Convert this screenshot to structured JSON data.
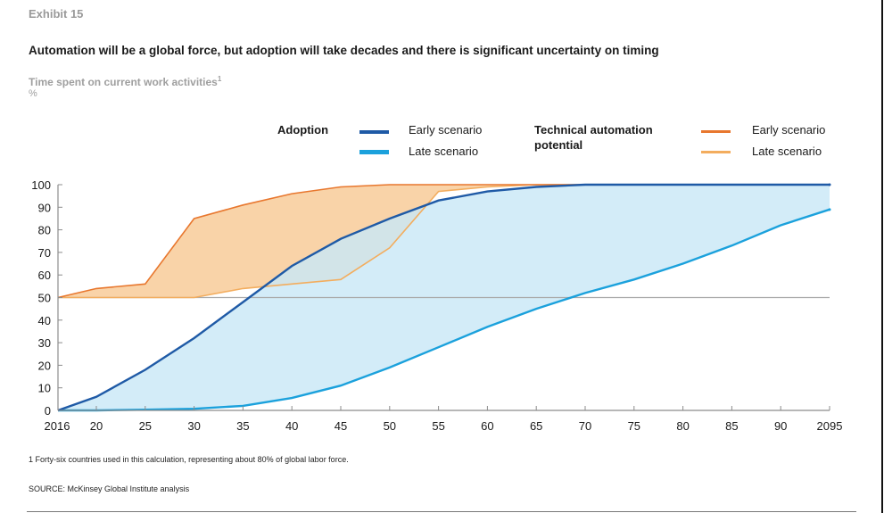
{
  "header": {
    "exhibit": "Exhibit 15",
    "title": "Automation will be a global force, but adoption will take decades and there is significant uncertainty on timing",
    "subtitle": "Time spent on current work activities",
    "subtitle_footnote_mark": "1",
    "unit": "%"
  },
  "legend": {
    "adoption_title": "Adoption",
    "adoption_early": "Early scenario",
    "adoption_late": "Late scenario",
    "technical_title_line1": "Technical automation",
    "technical_title_line2": "potential",
    "technical_early": "Early scenario",
    "technical_late": "Late scenario"
  },
  "colors": {
    "adoption_early": "#1f5aa6",
    "adoption_late": "#1ba1dc",
    "adoption_fill": "#c9e8f7",
    "technical_early": "#e8772e",
    "technical_late": "#f3ad5e",
    "technical_fill": "#f9d3a8",
    "overlap_fill": "#e3c9a3",
    "axis": "#8c8c8c",
    "reference_line": "#a9a9a9"
  },
  "footnote": "1  Forty-six countries used in this calculation, representing about 80% of global labor force.",
  "source": "SOURCE: McKinsey Global Institute analysis",
  "chart_data": {
    "type": "area",
    "title": "Automation will be a global force, but adoption will take decades and there is significant uncertainty on timing",
    "subtitle": "Time spent on current work activities",
    "xlabel": "",
    "ylabel": "%",
    "ylim": [
      0,
      100
    ],
    "xlim": [
      2016,
      2095
    ],
    "grid": false,
    "reference_line_y": 50,
    "legend_position": "top-right",
    "y_ticks": [
      0,
      10,
      20,
      30,
      40,
      50,
      60,
      70,
      80,
      90,
      100
    ],
    "x_tick_values": [
      2016,
      2020,
      2025,
      2030,
      2035,
      2040,
      2045,
      2050,
      2055,
      2060,
      2065,
      2070,
      2075,
      2080,
      2085,
      2090,
      2095
    ],
    "x_tick_labels": [
      "2016",
      "20",
      "25",
      "30",
      "35",
      "40",
      "45",
      "50",
      "55",
      "60",
      "65",
      "70",
      "75",
      "80",
      "85",
      "90",
      "2095"
    ],
    "series": [
      {
        "name": "Technical automation potential – Early scenario",
        "group": "technical",
        "scenario": "early",
        "x": [
          2016,
          2020,
          2025,
          2030,
          2035,
          2040,
          2045,
          2050,
          2055,
          2060,
          2065,
          2070
        ],
        "values": [
          50,
          54,
          56,
          85,
          91,
          96,
          99,
          100,
          100,
          100,
          100,
          100
        ]
      },
      {
        "name": "Technical automation potential – Late scenario",
        "group": "technical",
        "scenario": "late",
        "x": [
          2016,
          2020,
          2025,
          2030,
          2035,
          2040,
          2045,
          2050,
          2055,
          2060,
          2065,
          2070
        ],
        "values": [
          50,
          50,
          50,
          50,
          54,
          56,
          58,
          72,
          97,
          99,
          100,
          100
        ]
      },
      {
        "name": "Adoption – Early scenario",
        "group": "adoption",
        "scenario": "early",
        "x": [
          2016,
          2020,
          2025,
          2030,
          2035,
          2040,
          2045,
          2050,
          2055,
          2060,
          2065,
          2070,
          2075,
          2080,
          2085,
          2090,
          2095
        ],
        "values": [
          0,
          6,
          18,
          32,
          48,
          64,
          76,
          85,
          93,
          97,
          99,
          100,
          100,
          100,
          100,
          100,
          100
        ]
      },
      {
        "name": "Adoption – Late scenario",
        "group": "adoption",
        "scenario": "late",
        "x": [
          2016,
          2020,
          2025,
          2030,
          2035,
          2040,
          2045,
          2050,
          2055,
          2060,
          2065,
          2070,
          2075,
          2080,
          2085,
          2090,
          2095
        ],
        "values": [
          0,
          0,
          0.3,
          0.7,
          2,
          5.5,
          11,
          19,
          28,
          37,
          45,
          52,
          58,
          65,
          73,
          82,
          89
        ]
      }
    ]
  }
}
